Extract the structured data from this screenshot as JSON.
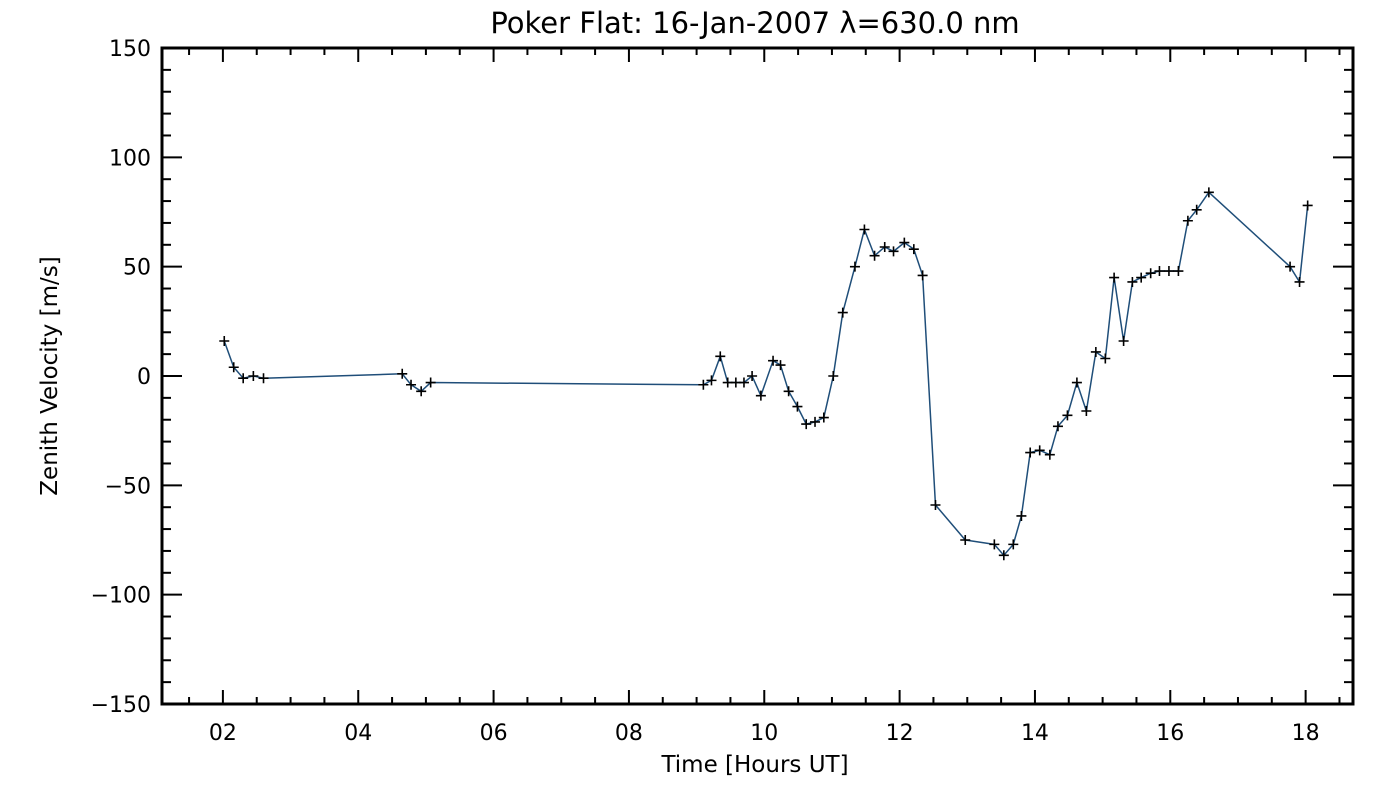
{
  "chart_data": {
    "type": "line",
    "title": "Poker Flat: 16-Jan-2007 λ=630.0 nm",
    "xlabel": "Time [Hours UT]",
    "ylabel": "Zenith Velocity [m/s]",
    "xlim": [
      1.1,
      18.7
    ],
    "ylim": [
      -150,
      150
    ],
    "x_ticks": [
      2,
      4,
      6,
      8,
      10,
      12,
      14,
      16,
      18
    ],
    "x_tick_labels": [
      "02",
      "04",
      "06",
      "08",
      "10",
      "12",
      "14",
      "16",
      "18"
    ],
    "y_ticks": [
      -150,
      -100,
      -50,
      0,
      50,
      100,
      150
    ],
    "y_tick_labels": [
      "−150",
      "−100",
      "−50",
      "0",
      "50",
      "100",
      "150"
    ],
    "grid": false,
    "marker": "plus",
    "line_color": "#1f4e79",
    "series": [
      {
        "x": [
          2.02,
          2.16,
          2.3,
          2.45,
          2.6,
          4.65,
          4.78,
          4.93,
          5.07,
          9.1,
          9.22,
          9.35,
          9.46,
          9.58,
          9.7,
          9.82,
          9.95,
          10.13,
          10.24,
          10.36,
          10.49,
          10.62,
          10.75,
          10.88,
          11.02,
          11.16,
          11.34,
          11.48,
          11.63,
          11.78,
          11.91,
          12.07,
          12.21,
          12.34,
          12.53,
          12.97,
          13.4,
          13.54,
          13.68,
          13.8,
          13.93,
          14.07,
          14.22,
          14.34,
          14.48,
          14.62,
          14.76,
          14.9,
          15.04,
          15.17,
          15.31,
          15.44,
          15.57,
          15.71,
          15.84,
          15.98,
          16.12,
          16.26,
          16.39,
          16.57,
          17.77,
          17.91,
          18.03
        ],
        "y": [
          16,
          4,
          -1,
          0,
          -1,
          1,
          -4,
          -7,
          -3,
          -4,
          -2,
          9,
          -3,
          -3,
          -3,
          0,
          -9,
          7,
          5,
          -7,
          -14,
          -22,
          -21,
          -19,
          0,
          29,
          50,
          67,
          55,
          59,
          57,
          61,
          58,
          46,
          -59,
          -75,
          -77,
          -82,
          -77,
          -64,
          -35,
          -34,
          -36,
          -23,
          -18,
          -3,
          -16,
          11,
          8,
          45,
          16,
          43,
          45,
          47,
          48,
          48,
          48,
          71,
          76,
          84,
          50,
          43,
          78
        ]
      }
    ]
  }
}
